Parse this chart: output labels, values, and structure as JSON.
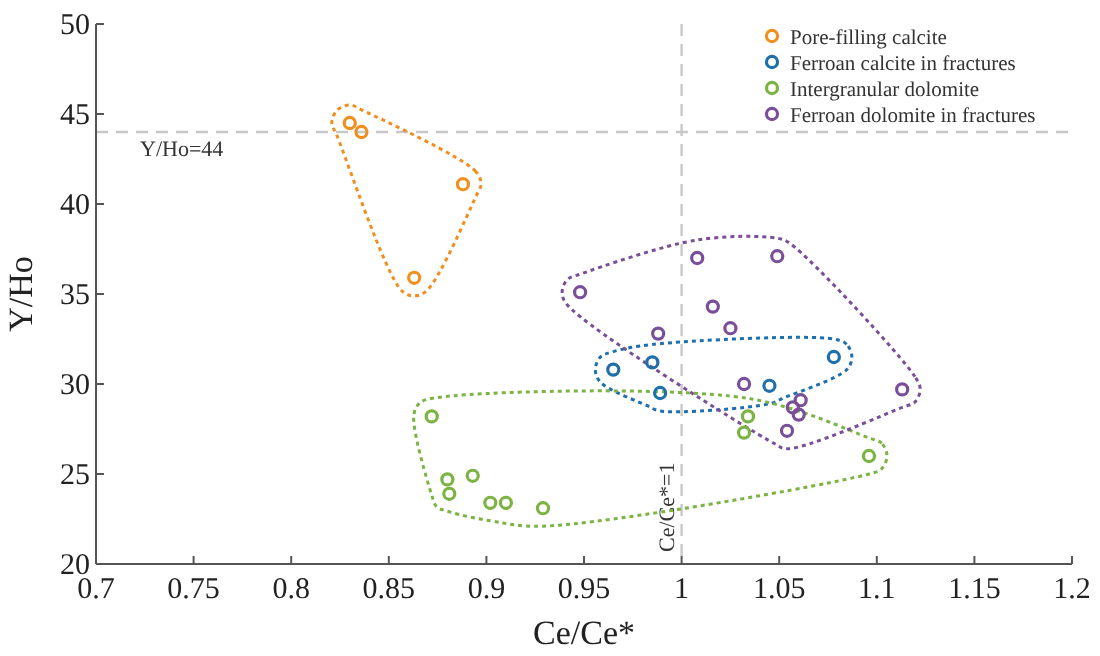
{
  "chart_data": {
    "type": "scatter",
    "xlabel": "Ce/Ce*",
    "ylabel": "Y/Ho",
    "xlim": [
      0.7,
      1.2
    ],
    "ylim": [
      20,
      50
    ],
    "xticks": [
      0.7,
      0.75,
      0.8,
      0.85,
      0.9,
      0.95,
      1,
      1.05,
      1.1,
      1.15,
      1.2
    ],
    "yticks": [
      20,
      25,
      30,
      35,
      40,
      45,
      50
    ],
    "grid": false,
    "legend": "top right",
    "marker": "circle",
    "ref_lines": [
      {
        "axis": "y",
        "value": 44,
        "label": "Y/Ho=44",
        "color": "#c8c8c8",
        "line_style": "dashed"
      },
      {
        "axis": "x",
        "value": 1,
        "label": "Ce/Ce*=1",
        "color": "#c8c8c8",
        "line_style": "dashed"
      }
    ],
    "series": [
      {
        "name": "Pore-filling calcite",
        "color": "#f28e1e",
        "x": [
          0.83,
          0.836,
          0.888,
          0.863
        ],
        "values": [
          44.5,
          44.0,
          41.1,
          35.9
        ]
      },
      {
        "name": "Ferroan calcite in fractures",
        "color": "#1f6fad",
        "x": [
          0.965,
          0.985,
          0.989,
          1.045,
          1.078
        ],
        "values": [
          30.8,
          31.2,
          29.5,
          29.9,
          31.5
        ]
      },
      {
        "name": "Intergranular dolomite",
        "color": "#7cb342",
        "x": [
          0.872,
          0.88,
          0.881,
          0.893,
          0.902,
          0.91,
          0.929,
          1.034,
          1.032,
          1.096
        ],
        "values": [
          28.2,
          24.7,
          23.9,
          24.9,
          23.4,
          23.4,
          23.1,
          28.2,
          27.3,
          26.0
        ]
      },
      {
        "name": "Ferroan dolomite in fractures",
        "color": "#7a4f9a",
        "x": [
          0.948,
          1.008,
          1.049,
          1.016,
          1.025,
          0.988,
          1.032,
          1.061,
          1.057,
          1.06,
          1.054,
          1.113
        ],
        "values": [
          35.1,
          37.0,
          37.1,
          34.3,
          33.1,
          32.8,
          30.0,
          29.1,
          28.7,
          28.3,
          27.4,
          29.7
        ]
      }
    ]
  }
}
